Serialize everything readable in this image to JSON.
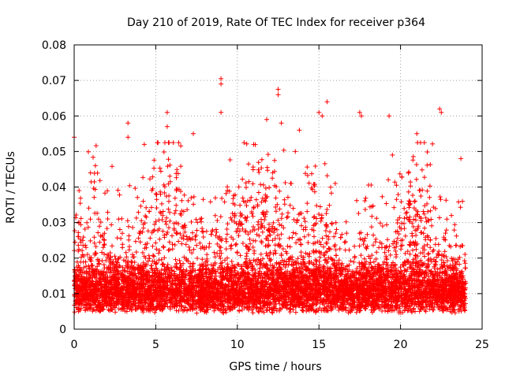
{
  "chart_data": {
    "type": "scatter",
    "title": "Day 210 of 2019, Rate Of TEC Index for receiver p364",
    "xlabel": "GPS time / hours",
    "ylabel": "ROTI / TECUs",
    "xlim": [
      0,
      25
    ],
    "ylim": [
      0,
      0.08
    ],
    "xticks": [
      0,
      5,
      10,
      15,
      20,
      25
    ],
    "xtick_labels": [
      "0",
      "5",
      "10",
      "15",
      "20",
      "25"
    ],
    "yticks": [
      0,
      0.01,
      0.02,
      0.03,
      0.04,
      0.05,
      0.06,
      0.07,
      0.08
    ],
    "ytick_labels": [
      "0",
      "0.01",
      "0.02",
      "0.03",
      "0.04",
      "0.05",
      "0.06",
      "0.07",
      "0.08"
    ],
    "grid": true,
    "marker": "plus",
    "color": "#ff0000",
    "series": [
      {
        "name": "ROTI",
        "notable_points": [
          {
            "x": 0.0,
            "y": 0.054
          },
          {
            "x": 0.3,
            "y": 0.039
          },
          {
            "x": 1.0,
            "y": 0.044
          },
          {
            "x": 1.3,
            "y": 0.046
          },
          {
            "x": 3.3,
            "y": 0.058
          },
          {
            "x": 3.3,
            "y": 0.054
          },
          {
            "x": 4.3,
            "y": 0.052
          },
          {
            "x": 5.7,
            "y": 0.061
          },
          {
            "x": 5.7,
            "y": 0.057
          },
          {
            "x": 7.3,
            "y": 0.055
          },
          {
            "x": 9.0,
            "y": 0.0705
          },
          {
            "x": 9.0,
            "y": 0.069
          },
          {
            "x": 9.0,
            "y": 0.061
          },
          {
            "x": 11.0,
            "y": 0.052
          },
          {
            "x": 11.8,
            "y": 0.059
          },
          {
            "x": 12.5,
            "y": 0.0675
          },
          {
            "x": 12.5,
            "y": 0.066
          },
          {
            "x": 12.7,
            "y": 0.058
          },
          {
            "x": 13.3,
            "y": 0.041
          },
          {
            "x": 13.8,
            "y": 0.056
          },
          {
            "x": 15.0,
            "y": 0.061
          },
          {
            "x": 15.2,
            "y": 0.06
          },
          {
            "x": 15.5,
            "y": 0.064
          },
          {
            "x": 16.0,
            "y": 0.041
          },
          {
            "x": 17.5,
            "y": 0.061
          },
          {
            "x": 17.6,
            "y": 0.06
          },
          {
            "x": 19.3,
            "y": 0.06
          },
          {
            "x": 19.5,
            "y": 0.049
          },
          {
            "x": 21.0,
            "y": 0.055
          },
          {
            "x": 22.4,
            "y": 0.062
          },
          {
            "x": 22.5,
            "y": 0.061
          },
          {
            "x": 23.7,
            "y": 0.048
          }
        ]
      }
    ]
  }
}
